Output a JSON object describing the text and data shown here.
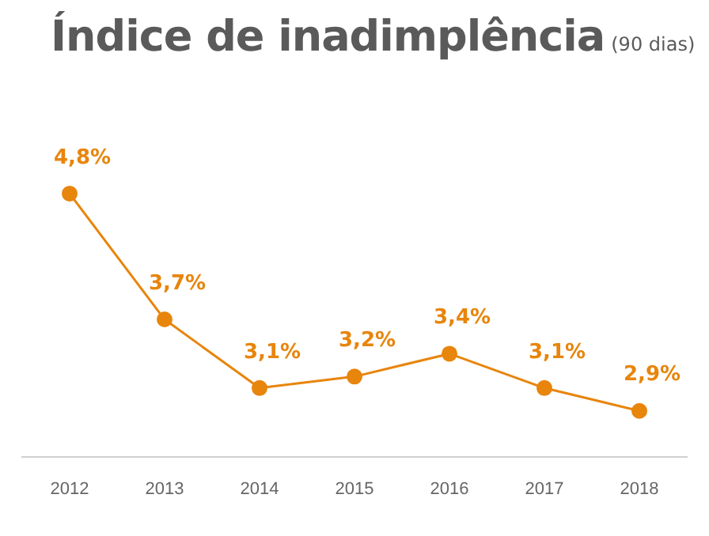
{
  "chart_data": {
    "type": "line",
    "title": "Índice de inadimplência",
    "subtitle": "(90 dias)",
    "categories": [
      "2012",
      "2013",
      "2014",
      "2015",
      "2016",
      "2017",
      "2018"
    ],
    "series": [
      {
        "color": "#e8850c",
        "values": [
          4.8,
          3.7,
          3.1,
          3.2,
          3.4,
          3.1,
          2.9
        ],
        "value_labels": [
          "4,8%",
          "3,7%",
          "3,1%",
          "3,2%",
          "3,4%",
          "3,1%",
          "2,9%"
        ]
      }
    ],
    "tick_labels": "x",
    "grid": false,
    "legend": false,
    "marker": "circle",
    "line_style": "solid"
  }
}
